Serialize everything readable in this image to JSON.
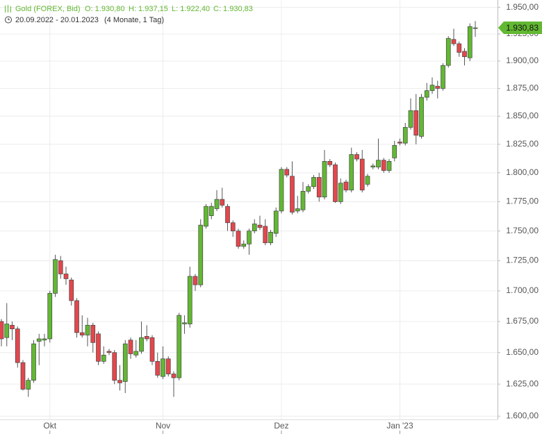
{
  "chart_data": {
    "type": "candlestick",
    "instrument": "Gold (FOREX, Bid)",
    "ohlc_labels": [
      "O: 1.930,80",
      "H: 1.937,15",
      "L: 1.922,40",
      "C: 1.930,83"
    ],
    "period": "20.09.2022 - 20.01.2023",
    "duration": "(4 Monate, 1 Tag)",
    "categories": [
      null,
      null,
      null,
      null,
      null,
      null,
      null,
      null,
      null,
      "Okt",
      null,
      null,
      null,
      null,
      null,
      null,
      null,
      null,
      null,
      null,
      null,
      null,
      null,
      null,
      null,
      null,
      null,
      null,
      null,
      null,
      "Nov",
      null,
      null,
      null,
      null,
      null,
      null,
      null,
      null,
      null,
      null,
      null,
      null,
      null,
      null,
      null,
      null,
      null,
      null,
      null,
      null,
      null,
      "Dez",
      null,
      null,
      null,
      null,
      null,
      null,
      null,
      null,
      null,
      null,
      null,
      null,
      null,
      null,
      null,
      null,
      null,
      null,
      null,
      null,
      null,
      "Jan '23",
      null,
      null,
      null,
      null,
      null,
      null,
      null,
      null,
      null,
      null,
      null,
      null,
      null,
      null
    ],
    "open": [
      1675,
      1662,
      1672,
      1669,
      1642,
      1621,
      1628,
      1659,
      1660,
      1661,
      1698,
      1725,
      1714,
      1709,
      1692,
      1666,
      1664,
      1672,
      1665,
      1643,
      1651,
      1650,
      1628,
      1627,
      1660,
      1648,
      1651,
      1663,
      1662,
      1643,
      1631,
      1645,
      1633,
      1630,
      1673,
      1673,
      1712,
      1705,
      1754,
      1763,
      1769,
      1777,
      1771,
      1757,
      1750,
      1737,
      1739,
      1750,
      1755,
      1754,
      1740,
      1748,
      1767,
      1803,
      1797,
      1767,
      1768,
      1784,
      1788,
      1796,
      1779,
      1810,
      1807,
      1775,
      1792,
      1785,
      1816,
      1812,
      1790,
      1805,
      1805,
      1811,
      1802,
      1813,
      1827,
      1826,
      1840,
      1855,
      1832,
      1867,
      1873,
      1877,
      1875,
      1896,
      1920,
      1916,
      1909,
      1903,
      1930.8
    ],
    "high": [
      1677,
      1690,
      1675,
      1671,
      1644,
      1630,
      1660,
      1665,
      1665,
      1700,
      1730,
      1729,
      1720,
      1711,
      1694,
      1680,
      1678,
      1674,
      1667,
      1655,
      1653,
      1652,
      1640,
      1660,
      1662,
      1660,
      1675,
      1672,
      1664,
      1650,
      1655,
      1647,
      1635,
      1682,
      1680,
      1720,
      1714,
      1760,
      1773,
      1774,
      1785,
      1787,
      1773,
      1759,
      1752,
      1742,
      1752,
      1760,
      1763,
      1760,
      1751,
      1770,
      1805,
      1805,
      1810,
      1780,
      1792,
      1790,
      1798,
      1800,
      1820,
      1812,
      1809,
      1795,
      1794,
      1822,
      1818,
      1820,
      1799,
      1808,
      1830,
      1813,
      1812,
      1828,
      1830,
      1844,
      1866,
      1870,
      1870,
      1880,
      1885,
      1882,
      1898,
      1923,
      1930,
      1918,
      1912,
      1935,
      1937.15
    ],
    "low": [
      1655,
      1655,
      1660,
      1638,
      1620,
      1615,
      1626,
      1640,
      1655,
      1658,
      1695,
      1710,
      1705,
      1688,
      1662,
      1662,
      1655,
      1650,
      1640,
      1641,
      1648,
      1625,
      1620,
      1618,
      1645,
      1646,
      1649,
      1659,
      1640,
      1630,
      1629,
      1631,
      1615,
      1628,
      1665,
      1670,
      1700,
      1703,
      1752,
      1760,
      1767,
      1770,
      1750,
      1745,
      1735,
      1735,
      1730,
      1748,
      1751,
      1738,
      1738,
      1745,
      1765,
      1796,
      1764,
      1765,
      1766,
      1782,
      1786,
      1775,
      1777,
      1805,
      1774,
      1773,
      1783,
      1783,
      1810,
      1783,
      1788,
      1803,
      1803,
      1800,
      1800,
      1810,
      1824,
      1824,
      1838,
      1825,
      1830,
      1864,
      1870,
      1866,
      1873,
      1894,
      1914,
      1904,
      1896,
      1900,
      1922.4
    ],
    "close": [
      1661,
      1673,
      1669,
      1642,
      1621,
      1628,
      1657,
      1661,
      1661,
      1698,
      1726,
      1714,
      1710,
      1692,
      1666,
      1664,
      1672,
      1658,
      1643,
      1648,
      1650,
      1628,
      1626,
      1657,
      1649,
      1651,
      1662,
      1661,
      1643,
      1632,
      1645,
      1633,
      1630,
      1680,
      1674,
      1712,
      1705,
      1755,
      1771,
      1771,
      1777,
      1772,
      1757,
      1750,
      1737,
      1739,
      1750,
      1756,
      1753,
      1740,
      1749,
      1767,
      1803,
      1798,
      1766,
      1769,
      1784,
      1788,
      1796,
      1779,
      1810,
      1807,
      1775,
      1791,
      1785,
      1816,
      1812,
      1785,
      1797,
      1806,
      1811,
      1802,
      1810,
      1824,
      1826,
      1840,
      1855,
      1833,
      1867,
      1873,
      1878,
      1875,
      1896,
      1921,
      1916,
      1908,
      1904,
      1932,
      1930.83
    ],
    "up_color": "#62b832",
    "down_color": "#e5464c",
    "log": true,
    "grid": true,
    "ylim": [
      1598,
      1957
    ],
    "yticks": [
      {
        "value": 1600,
        "label": "1.600,00"
      },
      {
        "value": 1625,
        "label": "1.625,00"
      },
      {
        "value": 1650,
        "label": "1.650,00"
      },
      {
        "value": 1675,
        "label": "1.675,00"
      },
      {
        "value": 1700,
        "label": "1.700,00"
      },
      {
        "value": 1725,
        "label": "1.725,00"
      },
      {
        "value": 1750,
        "label": "1.750,00"
      },
      {
        "value": 1775,
        "label": "1.775,00"
      },
      {
        "value": 1800,
        "label": "1.800,00"
      },
      {
        "value": 1825,
        "label": "1.825,00"
      },
      {
        "value": 1850,
        "label": "1.850,00"
      },
      {
        "value": 1875,
        "label": "1.875,00"
      },
      {
        "value": 1900,
        "label": "1.900,00"
      },
      {
        "value": 1925,
        "label": "1.925,00"
      },
      {
        "value": 1950,
        "label": "1.950,00"
      }
    ],
    "last_price": {
      "value": 1930.83,
      "label": "1.930,83"
    }
  }
}
